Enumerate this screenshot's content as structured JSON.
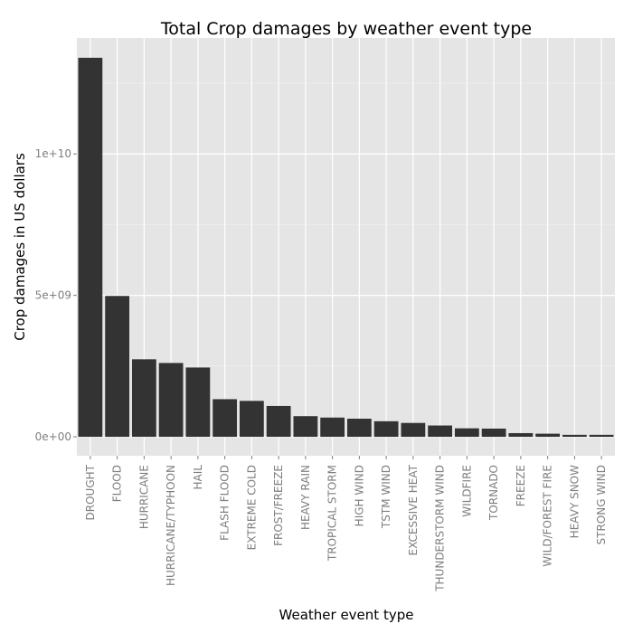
{
  "chart_data": {
    "type": "bar",
    "title": "Total Crop damages by weather event type",
    "xlabel": "Weather event type",
    "ylabel": "Crop damages in US dollars",
    "categories": [
      "DROUGHT",
      "FLOOD",
      "HURRICANE",
      "HURRICANE/TYPHOON",
      "HAIL",
      "FLASH FLOOD",
      "EXTREME COLD",
      "FROST/FREEZE",
      "HEAVY RAIN",
      "TROPICAL STORM",
      "HIGH WIND",
      "TSTM WIND",
      "EXCESSIVE HEAT",
      "THUNDERSTORM WIND",
      "WILDFIRE",
      "TORNADO",
      "FREEZE",
      "WILD/FOREST FIRE",
      "HEAVY SNOW",
      "STRONG WIND"
    ],
    "values": [
      13400000000,
      4980000000,
      2740000000,
      2610000000,
      2450000000,
      1330000000,
      1270000000,
      1090000000,
      730000000,
      680000000,
      640000000,
      550000000,
      490000000,
      400000000,
      300000000,
      290000000,
      130000000,
      110000000,
      70000000,
      70000000
    ],
    "yticks": [
      {
        "value": 0,
        "label": "0e+00"
      },
      {
        "value": 5000000000,
        "label": "5e+09"
      },
      {
        "value": 10000000000,
        "label": "1e+10"
      }
    ],
    "ylim": [
      -670000000,
      14100000000
    ],
    "grid": true,
    "legend": "none",
    "colors": {
      "panel": "#e5e5e5",
      "grid_major": "#ffffff",
      "grid_minor": "#f2f2f2",
      "bar": "#333333",
      "tick": "#7f7f7f"
    }
  }
}
